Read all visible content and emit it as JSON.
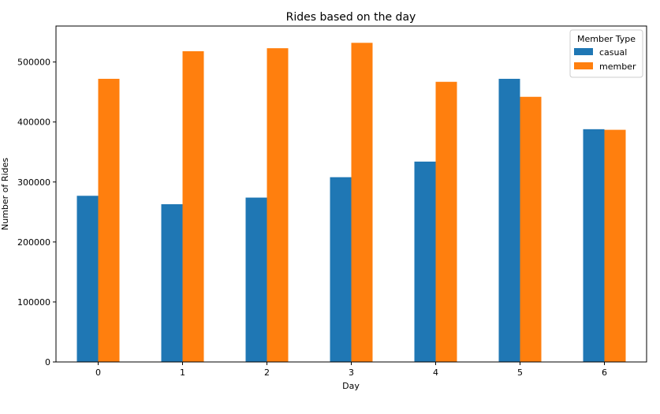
{
  "chart_data": {
    "type": "bar",
    "title": "Rides based on the day",
    "xlabel": "Day",
    "ylabel": "Number of Rides",
    "categories": [
      "0",
      "1",
      "2",
      "3",
      "4",
      "5",
      "6"
    ],
    "series": [
      {
        "name": "casual",
        "color": "#1f77b4",
        "values": [
          277000,
          263000,
          274000,
          308000,
          334000,
          472000,
          388000
        ]
      },
      {
        "name": "member",
        "color": "#ff7f0e",
        "values": [
          472000,
          518000,
          523000,
          532000,
          467000,
          442000,
          387000
        ]
      }
    ],
    "ylim": [
      0,
      560000
    ],
    "yticks": [
      0,
      100000,
      200000,
      300000,
      400000,
      500000
    ],
    "ytick_labels": [
      "0",
      "100000",
      "200000",
      "300000",
      "400000",
      "500000"
    ],
    "legend": {
      "title": "Member Type",
      "placement": "upper-right"
    },
    "grid": false
  }
}
